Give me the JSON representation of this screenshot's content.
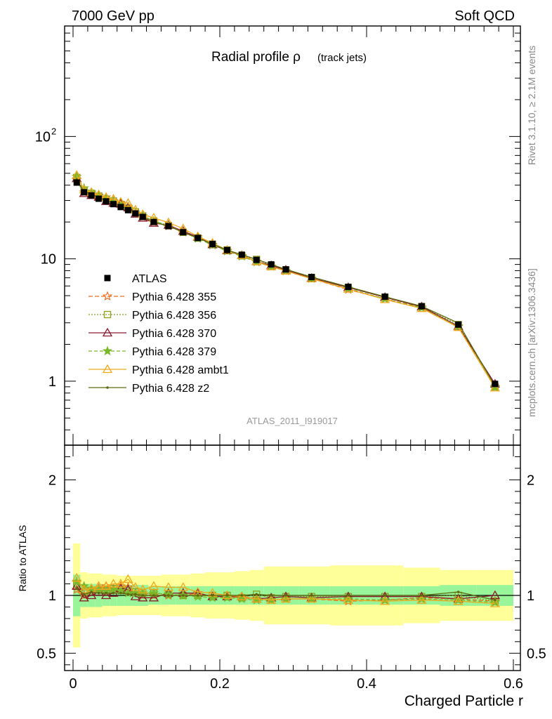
{
  "header": {
    "left_label": "7000 GeV pp",
    "right_label": "Soft QCD"
  },
  "side_labels": {
    "rivet": "Rivet 3.1.10, ≥ 2.1M events",
    "mcplots": "mcplots.cern.ch [arXiv:1306.3436]"
  },
  "chart_data": [
    {
      "panel": "main",
      "type": "line",
      "title": "Radial profile ρ",
      "title_suffix": "(track jets)",
      "analysis_id": "ATLAS_2011_I919017",
      "yscale": "log",
      "xlim": [
        0,
        0.6
      ],
      "ylim": [
        0.3,
        800
      ],
      "y_ticks": [
        {
          "value": 1,
          "label": "1"
        },
        {
          "value": 10,
          "label": "10"
        },
        {
          "value": 100,
          "label": "10",
          "sup": "2"
        }
      ],
      "x": [
        0.005,
        0.015,
        0.025,
        0.035,
        0.045,
        0.055,
        0.065,
        0.075,
        0.085,
        0.095,
        0.11,
        0.13,
        0.15,
        0.17,
        0.19,
        0.21,
        0.23,
        0.25,
        0.27,
        0.29,
        0.325,
        0.375,
        0.425,
        0.475,
        0.525,
        0.575
      ],
      "data": {
        "name": "ATLAS",
        "color": "#000000",
        "values": [
          42.0,
          35.0,
          33.0,
          31.0,
          29.5,
          28.0,
          26.5,
          25.0,
          23.5,
          22.0,
          20.0,
          18.5,
          16.5,
          14.8,
          13.2,
          11.8,
          10.8,
          9.8,
          9.0,
          8.2,
          7.1,
          5.9,
          4.9,
          4.1,
          2.9,
          0.95
        ],
        "band_inner": [
          0.18,
          0.1,
          0.1,
          0.1,
          0.09,
          0.09,
          0.09,
          0.09,
          0.09,
          0.09,
          0.08,
          0.08,
          0.08,
          0.08,
          0.08,
          0.08,
          0.08,
          0.08,
          0.08,
          0.08,
          0.08,
          0.08,
          0.08,
          0.08,
          0.09,
          0.09
        ],
        "band_outer": [
          0.45,
          0.2,
          0.19,
          0.19,
          0.18,
          0.18,
          0.17,
          0.17,
          0.17,
          0.17,
          0.17,
          0.18,
          0.18,
          0.19,
          0.2,
          0.2,
          0.21,
          0.22,
          0.25,
          0.25,
          0.25,
          0.26,
          0.26,
          0.24,
          0.22,
          0.22
        ]
      },
      "legend_position": "center-left",
      "series": [
        {
          "name": "Pythia 6.428 355",
          "color": "#ee6a1a",
          "dash": "6,3",
          "marker": "star-open",
          "ratio": [
            1.05,
            1.0,
            1.05,
            1.06,
            1.08,
            1.06,
            1.08,
            1.07,
            1.02,
            1.0,
            1.0,
            1.0,
            1.0,
            1.02,
            0.99,
            0.99,
            0.98,
            0.97,
            0.96,
            0.97,
            0.97,
            0.95,
            0.96,
            0.98,
            0.97,
            0.95
          ]
        },
        {
          "name": "Pythia 6.428 356",
          "color": "#8b9d1c",
          "dash": "2,2",
          "marker": "square-open",
          "ratio": [
            1.1,
            1.02,
            1.04,
            1.05,
            1.04,
            1.06,
            1.05,
            1.04,
            1.03,
            1.02,
            1.02,
            1.01,
            1.0,
            1.0,
            1.0,
            1.0,
            0.98,
            1.01,
            0.98,
            0.99,
            0.99,
            0.99,
            0.99,
            0.99,
            1.0,
            0.95
          ]
        },
        {
          "name": "Pythia 6.428 370",
          "color": "#8b1a2c",
          "dash": "",
          "marker": "triangle-open",
          "ratio": [
            1.08,
            0.98,
            1.0,
            1.03,
            1.0,
            1.02,
            1.06,
            1.05,
            0.99,
            0.98,
            0.98,
            1.02,
            1.02,
            1.02,
            0.99,
            0.99,
            0.99,
            0.97,
            0.98,
            0.99,
            0.98,
            0.99,
            0.99,
            0.99,
            0.97,
            1.0
          ]
        },
        {
          "name": "Pythia 6.428 379",
          "color": "#7ab82a",
          "dash": "5,3",
          "marker": "star-filled",
          "ratio": [
            1.12,
            1.08,
            1.06,
            1.05,
            1.04,
            1.05,
            1.04,
            1.02,
            1.02,
            1.02,
            1.02,
            1.01,
            1.0,
            0.99,
            0.98,
            0.98,
            0.97,
            0.96,
            0.96,
            0.97,
            0.97,
            0.97,
            0.96,
            0.97,
            0.96,
            0.94
          ]
        },
        {
          "name": "Pythia 6.428 ambt1",
          "color": "#f0a81c",
          "dash": "",
          "marker": "triangle-open",
          "ratio": [
            1.15,
            1.05,
            1.06,
            1.08,
            1.08,
            1.1,
            1.1,
            1.14,
            1.07,
            1.05,
            1.08,
            1.07,
            1.07,
            1.03,
            1.02,
            1.0,
            0.99,
            0.97,
            0.96,
            0.97,
            0.97,
            0.96,
            0.95,
            0.96,
            0.95,
            0.93
          ]
        },
        {
          "name": "Pythia 6.428 z2",
          "color": "#5c6a10",
          "dash": "",
          "marker": "dot",
          "ratio": [
            1.06,
            1.01,
            1.03,
            1.02,
            1.02,
            1.02,
            1.02,
            1.01,
            1.01,
            1.0,
            1.0,
            1.0,
            1.0,
            1.0,
            1.0,
            1.0,
            1.0,
            1.01,
            1.0,
            1.0,
            1.0,
            1.0,
            1.0,
            1.0,
            1.03,
            0.96
          ]
        }
      ]
    },
    {
      "panel": "ratio",
      "type": "line",
      "ylabel": "Ratio to ATLAS",
      "xlabel": "Charged Particle r",
      "xlim": [
        0,
        0.6
      ],
      "ylim": [
        0.35,
        2.3
      ],
      "y_ticks": [
        {
          "value": 0.5,
          "label": "0.5"
        },
        {
          "value": 1,
          "label": "1"
        },
        {
          "value": 2,
          "label": "2"
        }
      ],
      "x_ticks": [
        {
          "value": 0,
          "label": "0"
        },
        {
          "value": 0.2,
          "label": "0.2"
        },
        {
          "value": 0.4,
          "label": "0.4"
        },
        {
          "value": 0.6,
          "label": "0.6"
        }
      ]
    }
  ]
}
